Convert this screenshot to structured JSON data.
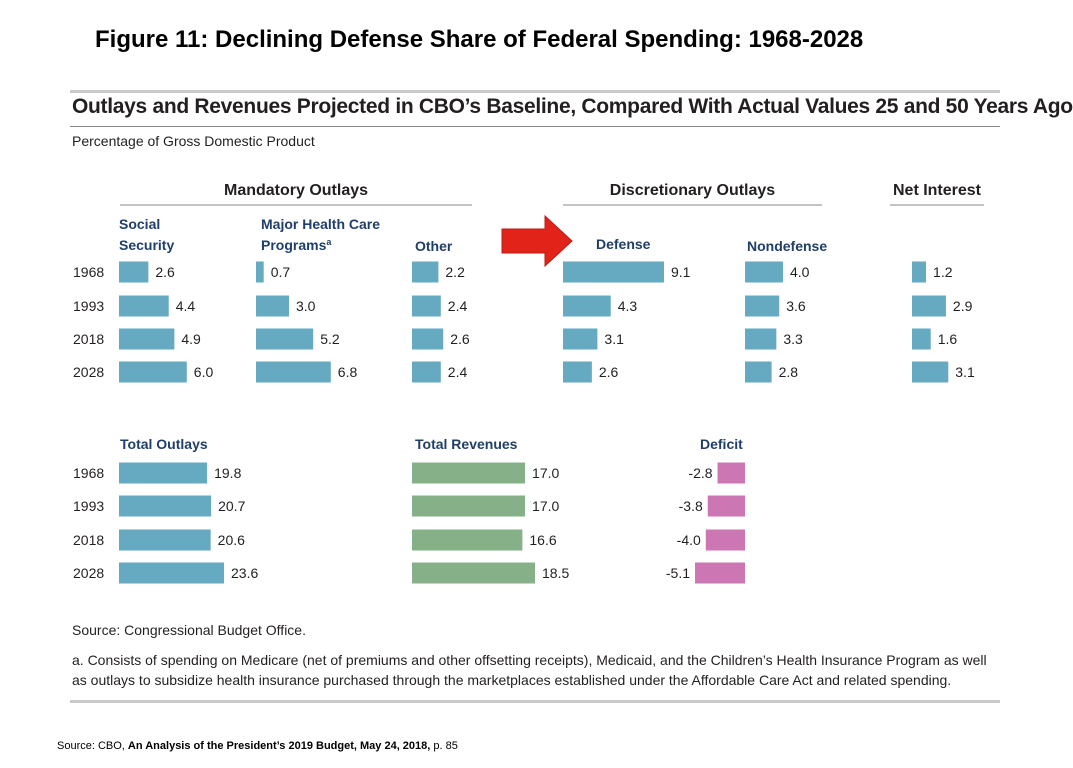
{
  "slide": {
    "title": "Figure 11: Declining Defense Share of Federal Spending: 1968-2028",
    "source_prefix": "Source: CBO, ",
    "source_document": "An Analysis of the President’s 2019 Budget, May 24, 2018,",
    "source_page": " p. 85"
  },
  "chart_data": {
    "type": "bar",
    "orientation": "horizontal",
    "title": "Outlays and Revenues Projected in CBO’s Baseline, Compared With Actual Values 25 and 50 Years Ago",
    "subtitle": "Percentage of Gross Domestic Product",
    "years": [
      "1968",
      "1993",
      "2018",
      "2028"
    ],
    "groups": [
      {
        "label": "Mandatory Outlays"
      },
      {
        "label": "Discretionary Outlays"
      },
      {
        "label": "Net Interest"
      }
    ],
    "panels": [
      {
        "label": "Social Security",
        "values": [
          2.6,
          4.4,
          4.9,
          6.0
        ],
        "labels": [
          "2.6",
          "4.4",
          "4.9",
          "6.0"
        ],
        "color": "#65aac0"
      },
      {
        "label": "Major Health Care Programs",
        "footnote_marker": "a",
        "values": [
          0.7,
          3.0,
          5.2,
          6.8
        ],
        "labels": [
          "0.7",
          "3.0",
          "5.2",
          "6.8"
        ],
        "color": "#65aac0"
      },
      {
        "label": "Other",
        "values": [
          2.2,
          2.4,
          2.6,
          2.4
        ],
        "labels": [
          "2.2",
          "2.4",
          "2.6",
          "2.4"
        ],
        "color": "#65aac0"
      },
      {
        "label": "Defense",
        "values": [
          9.1,
          4.3,
          3.1,
          2.6
        ],
        "labels": [
          "9.1",
          "4.3",
          "3.1",
          "2.6"
        ],
        "color": "#65aac0",
        "highlighted": true
      },
      {
        "label": "Nondefense",
        "values": [
          4.0,
          3.6,
          3.3,
          2.8
        ],
        "labels": [
          "4.0",
          "3.6",
          "3.3",
          "2.8"
        ],
        "color": "#65aac0"
      },
      {
        "label": "Net Interest",
        "values": [
          1.2,
          2.9,
          1.6,
          3.1
        ],
        "labels": [
          "1.2",
          "2.9",
          "1.6",
          "3.1"
        ],
        "color": "#65aac0"
      },
      {
        "label": "Total Outlays",
        "values": [
          19.8,
          20.7,
          20.6,
          23.6
        ],
        "labels": [
          "19.8",
          "20.7",
          "20.6",
          "23.6"
        ],
        "color": "#65aac0"
      },
      {
        "label": "Total Revenues",
        "values": [
          17.0,
          17.0,
          16.6,
          18.5
        ],
        "labels": [
          "17.0",
          "17.0",
          "16.6",
          "18.5"
        ],
        "color": "#86b088"
      },
      {
        "label": "Deficit",
        "values": [
          -2.8,
          -3.8,
          -4.0,
          -5.1
        ],
        "labels": [
          "-2.8",
          "-3.8",
          "-4.0",
          "-5.1"
        ],
        "color": "#cc76b4"
      }
    ],
    "source": "Source: Congressional Budget Office.",
    "note": "a. Consists of spending on Medicare (net of premiums and other offsetting receipts), Medicaid, and the Children’s Health Insurance Program as well as outlays to subsidize health insurance purchased through the marketplaces established under the Affordable Care Act and related spending."
  }
}
